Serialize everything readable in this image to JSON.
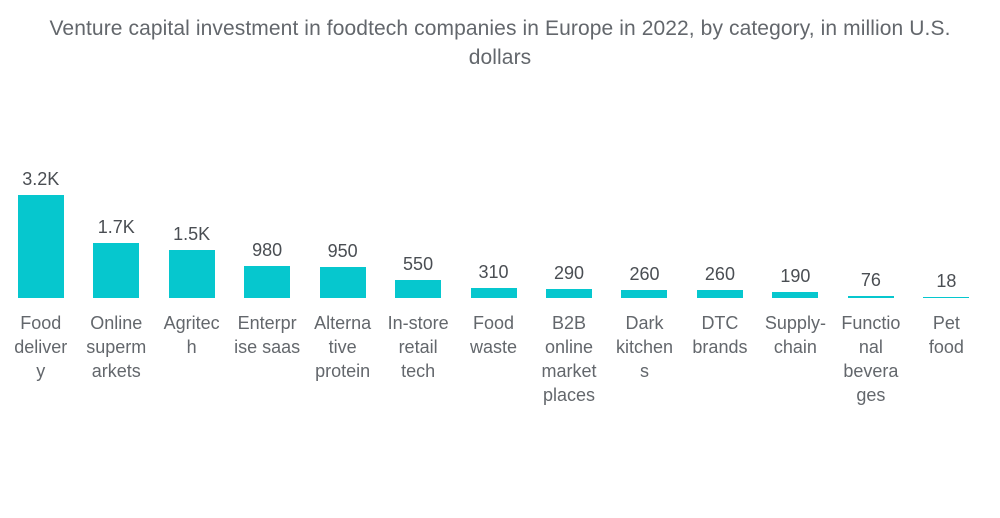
{
  "title": "Venture capital investment in foodtech companies in Europe in 2022, by category, in million U.S. dollars",
  "colors": {
    "background": "#FFFFFF",
    "bar": "#06C7CE",
    "title_text": "#63676C",
    "value_text": "#4A4E53",
    "category_text": "#63676C"
  },
  "chart_data": {
    "type": "bar",
    "title": "Venture capital investment in foodtech companies in Europe in 2022, by category, in million U.S. dollars",
    "unit": "million U.S. dollars",
    "xlabel": "",
    "ylabel": "",
    "ylim": [
      0,
      3200
    ],
    "grid": false,
    "legend": false,
    "axes": "hidden",
    "bar_color": "#06C7CE",
    "categories": [
      "Food delivery",
      "Online supermarkets",
      "Agritech",
      "Enterprise saas",
      "Alternative protein",
      "In-store retail tech",
      "Food waste",
      "B2B online marketplaces",
      "Dark kitchens",
      "DTC brands",
      "Supply-chain",
      "Functional beverages",
      "Pet food"
    ],
    "category_display": [
      "Food\ndeliver\ny",
      "Online\nsuperm\narkets",
      "Agritec\nh",
      "Enterpr\nise saas",
      "Alterna\ntive\nprotein",
      "In-store\nretail\ntech",
      "Food\nwaste",
      "B2B\nonline\nmarket\nplaces",
      "Dark\nkitchen\ns",
      "DTC\nbrands",
      "Supply-\nchain",
      "Functio\nnal\nbevera\nges",
      "Pet\nfood"
    ],
    "values": [
      3200,
      1700,
      1500,
      980,
      950,
      550,
      310,
      290,
      260,
      260,
      190,
      76,
      18
    ],
    "value_labels": [
      "3.2K",
      "1.7K",
      "1.5K",
      "980",
      "950",
      "550",
      "310",
      "290",
      "260",
      "260",
      "190",
      "76",
      "18"
    ]
  }
}
